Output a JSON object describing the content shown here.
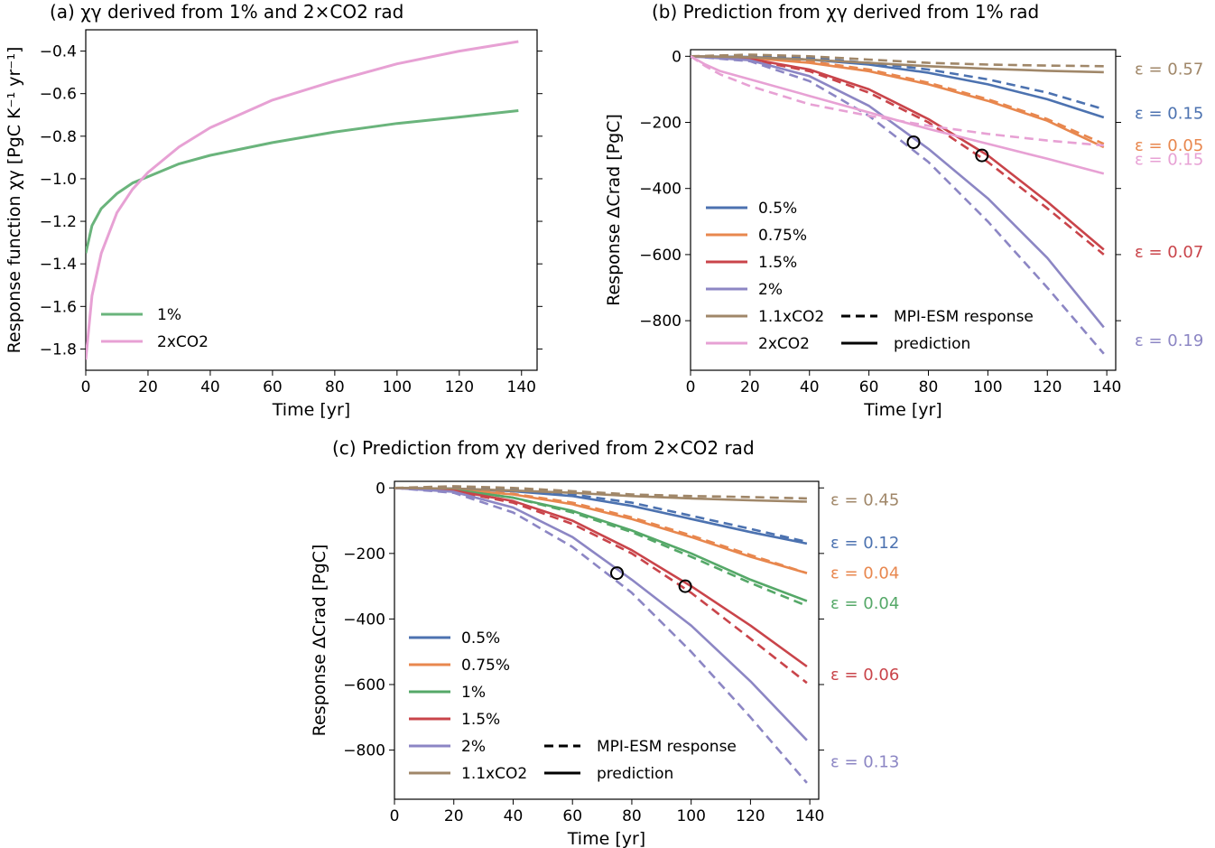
{
  "chart_data": [
    {
      "id": "a",
      "type": "line",
      "panel_label": "(a)",
      "title": "χγ derived from 1% and 2×CO2 rad",
      "xlabel": "Time [yr]",
      "ylabel": "Response function χγ [PgC K⁻¹ yr⁻¹]",
      "xlim": [
        0,
        145
      ],
      "ylim": [
        -1.9,
        -0.3
      ],
      "xticks": [
        "0",
        "20",
        "40",
        "60",
        "80",
        "100",
        "120",
        "140"
      ],
      "yticks": [
        "-1.8",
        "-1.6",
        "-1.4",
        "-1.2",
        "-1.0",
        "-0.8",
        "-0.6",
        "-0.4"
      ],
      "legend_position": "lower-left",
      "series": [
        {
          "name": "1%",
          "color": "#6ab47c",
          "style": "solid",
          "x": [
            0,
            2,
            5,
            10,
            15,
            20,
            30,
            40,
            60,
            80,
            100,
            120,
            139
          ],
          "y": [
            -1.35,
            -1.22,
            -1.14,
            -1.07,
            -1.02,
            -0.99,
            -0.93,
            -0.89,
            -0.83,
            -0.78,
            -0.74,
            -0.71,
            -0.68
          ]
        },
        {
          "name": "2xCO2",
          "color": "#e7a1d4",
          "style": "solid",
          "x": [
            0,
            2,
            5,
            10,
            15,
            20,
            30,
            40,
            60,
            80,
            100,
            120,
            139
          ],
          "y": [
            -1.85,
            -1.55,
            -1.35,
            -1.16,
            -1.05,
            -0.97,
            -0.85,
            -0.76,
            -0.63,
            -0.54,
            -0.46,
            -0.4,
            -0.355
          ]
        }
      ]
    },
    {
      "id": "b",
      "type": "line",
      "panel_label": "(b)",
      "title": "Prediction from χγ derived from 1% rad",
      "xlabel": "Time [yr]",
      "ylabel": "Response ΔCrad [PgC]",
      "xlim": [
        0,
        143
      ],
      "ylim": [
        -950,
        20
      ],
      "xticks": [
        "0",
        "20",
        "40",
        "60",
        "80",
        "100",
        "120",
        "140"
      ],
      "yticks": [
        "0",
        "-200",
        "-400",
        "-600",
        "-800"
      ],
      "legend_position": "lower-left",
      "style_legend": [
        {
          "label": "MPI-ESM response",
          "style": "dashed"
        },
        {
          "label": "prediction",
          "style": "solid"
        }
      ],
      "markers": [
        {
          "x": 75,
          "y": -260
        },
        {
          "x": 98,
          "y": -300
        }
      ],
      "series": [
        {
          "name": "0.5%",
          "color": "#4c72b0",
          "x": [
            0,
            20,
            40,
            60,
            80,
            100,
            120,
            139
          ],
          "pred": [
            0,
            -2,
            -10,
            -25,
            -50,
            -85,
            -130,
            -185
          ],
          "mpi": [
            0,
            0,
            -5,
            -20,
            -40,
            -70,
            -110,
            -160
          ],
          "epsilon": "ε = 0.15"
        },
        {
          "name": "0.75%",
          "color": "#e8874e",
          "x": [
            0,
            20,
            40,
            60,
            80,
            100,
            120,
            139
          ],
          "pred": [
            0,
            -5,
            -20,
            -45,
            -85,
            -135,
            -195,
            -275
          ],
          "mpi": [
            0,
            -3,
            -15,
            -40,
            -80,
            -130,
            -190,
            -265
          ],
          "epsilon": "ε = 0.05"
        },
        {
          "name": "1.5%",
          "color": "#c9444a",
          "x": [
            0,
            20,
            40,
            60,
            80,
            100,
            120,
            139
          ],
          "pred": [
            0,
            -8,
            -40,
            -100,
            -190,
            -300,
            -440,
            -585
          ],
          "mpi": [
            0,
            -10,
            -45,
            -110,
            -200,
            -320,
            -460,
            -600
          ],
          "epsilon": "ε = 0.07"
        },
        {
          "name": "2%",
          "color": "#8c86c4",
          "x": [
            0,
            20,
            40,
            60,
            80,
            100,
            120,
            139
          ],
          "pred": [
            0,
            -12,
            -60,
            -150,
            -280,
            -430,
            -610,
            -820
          ],
          "mpi": [
            0,
            -15,
            -75,
            -180,
            -320,
            -500,
            -700,
            -900
          ],
          "epsilon": "ε = 0.19"
        },
        {
          "name": "1.1xCO2",
          "color": "#a08769",
          "x": [
            0,
            20,
            40,
            60,
            80,
            100,
            120,
            139
          ],
          "pred": [
            0,
            -3,
            -10,
            -20,
            -30,
            -38,
            -44,
            -48
          ],
          "mpi": [
            0,
            5,
            0,
            -10,
            -20,
            -25,
            -28,
            -30
          ],
          "epsilon": "ε = 0.57"
        },
        {
          "name": "2xCO2",
          "color": "#e7a1d4",
          "x": [
            0,
            5,
            10,
            20,
            40,
            60,
            80,
            100,
            120,
            139
          ],
          "pred": [
            0,
            -25,
            -45,
            -70,
            -120,
            -170,
            -220,
            -265,
            -310,
            -355
          ],
          "mpi": [
            0,
            -30,
            -55,
            -90,
            -145,
            -180,
            -210,
            -235,
            -255,
            -270
          ],
          "epsilon": "ε = 0.15"
        }
      ]
    },
    {
      "id": "c",
      "type": "line",
      "panel_label": "(c)",
      "title": "Prediction from χγ derived from 2×CO2 rad",
      "xlabel": "Time [yr]",
      "ylabel": "Response ΔCrad [PgC]",
      "xlim": [
        0,
        143
      ],
      "ylim": [
        -950,
        20
      ],
      "xticks": [
        "0",
        "20",
        "40",
        "60",
        "80",
        "100",
        "120",
        "140"
      ],
      "yticks": [
        "0",
        "-200",
        "-400",
        "-600",
        "-800"
      ],
      "legend_position": "lower-left",
      "style_legend": [
        {
          "label": "MPI-ESM response",
          "style": "dashed"
        },
        {
          "label": "prediction",
          "style": "solid"
        }
      ],
      "markers": [
        {
          "x": 75,
          "y": -260
        },
        {
          "x": 98,
          "y": -300
        }
      ],
      "series": [
        {
          "name": "0.5%",
          "color": "#4c72b0",
          "x": [
            0,
            20,
            40,
            60,
            80,
            100,
            120,
            139
          ],
          "pred": [
            0,
            -2,
            -10,
            -25,
            -55,
            -95,
            -135,
            -170
          ],
          "mpi": [
            0,
            0,
            -5,
            -20,
            -45,
            -85,
            -125,
            -165
          ],
          "epsilon": "ε = 0.12"
        },
        {
          "name": "0.75%",
          "color": "#e8874e",
          "x": [
            0,
            20,
            40,
            60,
            80,
            100,
            120,
            139
          ],
          "pred": [
            0,
            -5,
            -20,
            -50,
            -95,
            -150,
            -210,
            -260
          ],
          "mpi": [
            0,
            -3,
            -18,
            -45,
            -90,
            -145,
            -205,
            -260
          ],
          "epsilon": "ε = 0.04"
        },
        {
          "name": "1%",
          "color": "#55a868",
          "x": [
            0,
            20,
            40,
            60,
            80,
            100,
            120,
            139
          ],
          "pred": [
            0,
            -6,
            -30,
            -70,
            -130,
            -200,
            -280,
            -345
          ],
          "mpi": [
            0,
            -6,
            -30,
            -75,
            -135,
            -210,
            -290,
            -360
          ],
          "epsilon": "ε = 0.04"
        },
        {
          "name": "1.5%",
          "color": "#c9444a",
          "x": [
            0,
            20,
            40,
            60,
            80,
            100,
            120,
            139
          ],
          "pred": [
            0,
            -8,
            -40,
            -100,
            -190,
            -300,
            -420,
            -545
          ],
          "mpi": [
            0,
            -10,
            -45,
            -110,
            -200,
            -320,
            -460,
            -595
          ],
          "epsilon": "ε = 0.06"
        },
        {
          "name": "2%",
          "color": "#8c86c4",
          "x": [
            0,
            20,
            40,
            60,
            80,
            100,
            120,
            139
          ],
          "pred": [
            0,
            -12,
            -60,
            -150,
            -280,
            -420,
            -590,
            -770
          ],
          "mpi": [
            0,
            -15,
            -75,
            -180,
            -320,
            -500,
            -700,
            -900
          ],
          "epsilon": "ε = 0.13"
        },
        {
          "name": "1.1xCO2",
          "color": "#a08769",
          "x": [
            0,
            20,
            40,
            60,
            80,
            100,
            120,
            139
          ],
          "pred": [
            0,
            -2,
            -8,
            -15,
            -25,
            -32,
            -38,
            -42
          ],
          "mpi": [
            0,
            5,
            0,
            -10,
            -20,
            -25,
            -28,
            -32
          ],
          "epsilon": "ε = 0.45"
        }
      ]
    }
  ]
}
